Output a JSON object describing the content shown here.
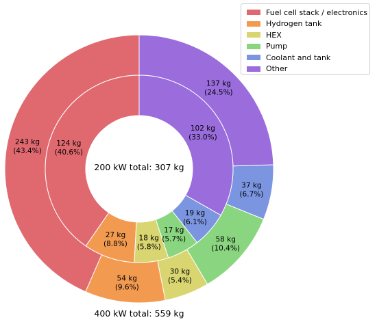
{
  "chart_data": {
    "type": "pie",
    "subtype": "nested-donut",
    "legend_position": "top-right",
    "inner_ring": {
      "label": "200 kW total: 307 kg",
      "slices": [
        {
          "name": "Fuel cell stack / electronics",
          "value": 124,
          "value_label": "124 kg",
          "pct_label": "(40.6%)"
        },
        {
          "name": "Hydrogen tank",
          "value": 27,
          "value_label": "27 kg",
          "pct_label": "(8.8%)"
        },
        {
          "name": "HEX",
          "value": 18,
          "value_label": "18 kg",
          "pct_label": "(5.8%)"
        },
        {
          "name": "Pump",
          "value": 17,
          "value_label": "17 kg",
          "pct_label": "(5.7%)"
        },
        {
          "name": "Coolant and tank",
          "value": 19,
          "value_label": "19 kg",
          "pct_label": "(6.1%)"
        },
        {
          "name": "Other",
          "value": 102,
          "value_label": "102 kg",
          "pct_label": "(33.0%)"
        }
      ]
    },
    "outer_ring": {
      "label": "400 kW total: 559 kg",
      "slices": [
        {
          "name": "Fuel cell stack / electronics",
          "value": 243,
          "value_label": "243 kg",
          "pct_label": "(43.4%)"
        },
        {
          "name": "Hydrogen tank",
          "value": 54,
          "value_label": "54 kg",
          "pct_label": "(9.6%)"
        },
        {
          "name": "HEX",
          "value": 30,
          "value_label": "30 kg",
          "pct_label": "(5.4%)"
        },
        {
          "name": "Pump",
          "value": 58,
          "value_label": "58 kg",
          "pct_label": "(10.4%)"
        },
        {
          "name": "Coolant and tank",
          "value": 37,
          "value_label": "37 kg",
          "pct_label": "(6.7%)"
        },
        {
          "name": "Other",
          "value": 137,
          "value_label": "137 kg",
          "pct_label": "(24.5%)"
        }
      ]
    },
    "legend": [
      {
        "label": "Fuel cell stack / electronics",
        "color": "#e06970"
      },
      {
        "label": "Hydrogen tank",
        "color": "#f29a50"
      },
      {
        "label": "HEX",
        "color": "#d9d570"
      },
      {
        "label": "Pump",
        "color": "#8ad680"
      },
      {
        "label": "Coolant and tank",
        "color": "#7b95e0"
      },
      {
        "label": "Other",
        "color": "#9a6cdc"
      }
    ]
  }
}
